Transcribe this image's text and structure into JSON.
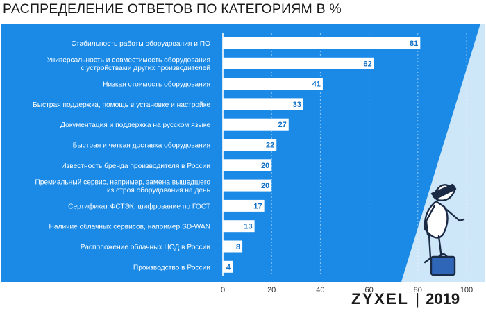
{
  "title": "РАСПРЕДЕЛЕНИЕ ОТВЕТОВ ПО КАТЕГОРИЯМ В %",
  "brand": {
    "logo": "ZYXEL",
    "separator": "|",
    "year": "2019"
  },
  "colors": {
    "panel": "#1a8ae6",
    "panel_light": "#cde6f8",
    "bar": "#ffffff",
    "value_text": "#0e6fc7",
    "gridline": "#ffffff"
  },
  "chart_data": {
    "type": "bar",
    "orientation": "horizontal",
    "title": "РАСПРЕДЕЛЕНИЕ ОТВЕТОВ ПО КАТЕГОРИЯМ В %",
    "categories": [
      [
        "Стабильность работы оборудования и ПО"
      ],
      [
        "Универсальность и совместимость оборудования",
        "с устройствами других производителей"
      ],
      [
        "Низкая стоимость оборудования"
      ],
      [
        "Быстрая поддержка, помощь в установке и настройке"
      ],
      [
        "Документация и поддержка на русском языке"
      ],
      [
        "Быстрая и четкая доставка оборудования"
      ],
      [
        "Известность бренда производителя в России"
      ],
      [
        "Премиальный сервис, например, замена вышедшего",
        "из строя оборудования на день"
      ],
      [
        "Сертификат ФСТЭК, шифрование по ГОСТ"
      ],
      [
        "Наличие облачных сервисов, например SD-WAN"
      ],
      [
        "Расположение облачных ЦОД в России"
      ],
      [
        "Производство в России"
      ]
    ],
    "values": [
      81,
      62,
      41,
      33,
      27,
      22,
      20,
      20,
      17,
      13,
      8,
      4
    ],
    "xlim": [
      0,
      100
    ],
    "xticks": [
      "0",
      "20",
      "40",
      "60",
      "80",
      "100"
    ],
    "grid": true
  }
}
